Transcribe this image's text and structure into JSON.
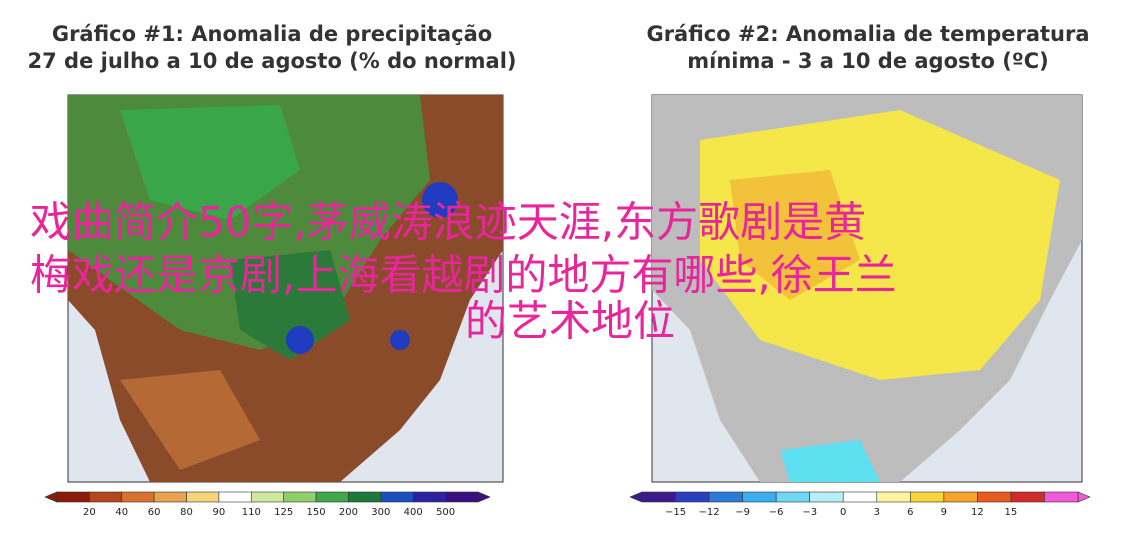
{
  "panels": [
    {
      "title_line1": "Gráfico #1: Anomalia de precipitação",
      "title_line2": "27 de julho a 10 de agosto (% do normal)",
      "colorbar_labels": [
        "20",
        "40",
        "60",
        "80",
        "90",
        "110",
        "125",
        "150",
        "200",
        "300",
        "400",
        "500"
      ]
    },
    {
      "title_line1": "Gráfico #2: Anomalia de temperatura",
      "title_line2": "mínima - 3 a 10 de agosto (ºC)",
      "colorbar_labels": [
        "−15",
        "−12",
        "−9",
        "−6",
        "−3",
        "0",
        "3",
        "6",
        "9",
        "12",
        "15"
      ]
    }
  ],
  "overlay": {
    "lines": [
      "戏曲简介50字,茅威涛浪迹天涯,东方歌剧是黄",
      "梅戏还是京剧,上海看越剧的地方有哪些,徐王兰",
      "的艺术地位"
    ]
  }
}
